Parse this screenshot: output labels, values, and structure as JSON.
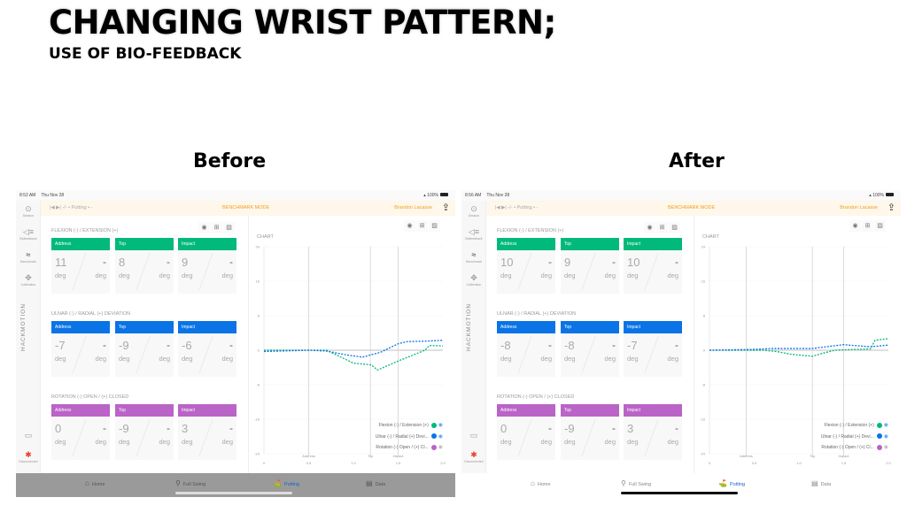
{
  "slide": {
    "title": "CHANGING WRIST PATTERN;",
    "subtitle": "USE OF BIO-FEEDBACK"
  },
  "colors": {
    "flexion": "#00b97a",
    "ulnar": "#0a74e6",
    "rotation": "#b964c6",
    "accent": "#f0a020"
  },
  "panels": [
    {
      "caption": "Before",
      "status": {
        "time": "8:52 AM",
        "date": "Thu Nov 28",
        "battery": "100%"
      },
      "toolbar": {
        "nav": "|◀  ▶|  -/-  •  Putting  •  -",
        "mode": "BENCHMARK MODE",
        "user": "Brandon Lacasse"
      },
      "sidebar": {
        "items": [
          "Session",
          "Biofeedback",
          "Benchmark",
          "Calibration"
        ],
        "brand": "HACKMOTION",
        "status": "Disconnected"
      },
      "sections": [
        {
          "title": "FLEXION (-) / EXTENSION (+)",
          "color": "#00b97a",
          "cards": [
            {
              "label": "Address",
              "value": "11",
              "target": "-",
              "unit": "deg"
            },
            {
              "label": "Top",
              "value": "8",
              "target": "-",
              "unit": "deg"
            },
            {
              "label": "Impact",
              "value": "9",
              "target": "-",
              "unit": "deg"
            }
          ]
        },
        {
          "title": "ULNAR (-) / RADIAL (+) DEVIATION",
          "color": "#0a74e6",
          "cards": [
            {
              "label": "Address",
              "value": "-7",
              "target": "-",
              "unit": "deg"
            },
            {
              "label": "Top",
              "value": "-9",
              "target": "-",
              "unit": "deg"
            },
            {
              "label": "Impact",
              "value": "-6",
              "target": "-",
              "unit": "deg"
            }
          ]
        },
        {
          "title": "ROTATION (-) OPEN / (+) CLOSED",
          "color": "#b964c6",
          "cards": [
            {
              "label": "Address",
              "value": "0",
              "target": "-",
              "unit": "deg"
            },
            {
              "label": "Top",
              "value": "-9",
              "target": "-",
              "unit": "deg"
            },
            {
              "label": "Impact",
              "value": "3",
              "target": "-",
              "unit": "deg"
            }
          ]
        }
      ],
      "chart_title": "CHART",
      "tabs": [
        {
          "label": "Home",
          "icon": "home-icon"
        },
        {
          "label": "Full Swing",
          "icon": "full-swing-icon"
        },
        {
          "label": "Putting",
          "icon": "putting-icon",
          "active": true
        },
        {
          "label": "Data",
          "icon": "data-icon"
        }
      ],
      "dimmed": true
    },
    {
      "caption": "After",
      "status": {
        "time": "8:56 AM",
        "date": "Thu Nov 28",
        "battery": "100%"
      },
      "toolbar": {
        "nav": "|◀  ▶|  -/-  •  Putting  •  -",
        "mode": "BENCHMARK MODE",
        "user": "Brandon Lacasse"
      },
      "sidebar": {
        "items": [
          "Session",
          "Biofeedback",
          "Benchmark",
          "Calibration"
        ],
        "brand": "HACKMOTION",
        "status": "Disconnected"
      },
      "sections": [
        {
          "title": "FLEXION (-) / EXTENSION (+)",
          "color": "#00b97a",
          "cards": [
            {
              "label": "Address",
              "value": "10",
              "target": "-",
              "unit": "deg"
            },
            {
              "label": "Top",
              "value": "9",
              "target": "-",
              "unit": "deg"
            },
            {
              "label": "Impact",
              "value": "10",
              "target": "-",
              "unit": "deg"
            }
          ]
        },
        {
          "title": "ULNAR (-) / RADIAL (+) DEVIATION",
          "color": "#0a74e6",
          "cards": [
            {
              "label": "Address",
              "value": "-8",
              "target": "-",
              "unit": "deg"
            },
            {
              "label": "Top",
              "value": "-8",
              "target": "-",
              "unit": "deg"
            },
            {
              "label": "Impact",
              "value": "-7",
              "target": "-",
              "unit": "deg"
            }
          ]
        },
        {
          "title": "ROTATION (-) OPEN / (+) CLOSED",
          "color": "#b964c6",
          "cards": [
            {
              "label": "Address",
              "value": "0",
              "target": "-",
              "unit": "deg"
            },
            {
              "label": "Top",
              "value": "-9",
              "target": "-",
              "unit": "deg"
            },
            {
              "label": "Impact",
              "value": "3",
              "target": "-",
              "unit": "deg"
            }
          ]
        }
      ],
      "chart_title": "CHART",
      "tabs": [
        {
          "label": "Home",
          "icon": "home-icon"
        },
        {
          "label": "Full Swing",
          "icon": "full-swing-icon"
        },
        {
          "label": "Putting",
          "icon": "putting-icon",
          "active": true
        },
        {
          "label": "Data",
          "icon": "data-icon"
        }
      ],
      "dimmed": false
    }
  ],
  "chart_data": [
    {
      "type": "line",
      "xlim": [
        0,
        2.0
      ],
      "ylim": [
        -24,
        24
      ],
      "xticks": [
        "0",
        "0.5",
        "1.0",
        "1.5",
        "2.0"
      ],
      "yticks": [
        "24",
        "16",
        "8",
        "0",
        "-8",
        "-16",
        "-24"
      ],
      "markers": [
        {
          "label": "Address",
          "x": 0.5
        },
        {
          "label": "Top",
          "x": 1.19
        },
        {
          "label": "Impact",
          "x": 1.5
        }
      ],
      "legend": [
        "Flexion (-) / Extension (+)",
        "Ulnar (-) / Radial (+) Devi...",
        "Rotation (-) Open / (+) Cl..."
      ],
      "series": [
        {
          "name": "Flexion (-) / Extension (+)",
          "color": "#00b97a",
          "visible": true,
          "x": [
            0,
            0.5,
            0.7,
            0.8,
            1.0,
            1.2,
            1.27,
            1.5,
            1.8,
            1.85,
            2.0
          ],
          "y": [
            0,
            0,
            0,
            -1,
            -3,
            -3.4,
            -4.6,
            -2.5,
            0,
            1.1,
            1.0
          ]
        },
        {
          "name": "Ulnar (-) / Radial (+) Devi...",
          "color": "#0a74e6",
          "visible": true,
          "x": [
            0,
            0.5,
            0.7,
            0.9,
            1.1,
            1.3,
            1.5,
            1.6,
            1.8,
            2.0
          ],
          "y": [
            -0.3,
            0,
            -0.2,
            -1,
            -1.6,
            -0.5,
            1.5,
            2.0,
            2.1,
            2.3
          ]
        },
        {
          "name": "Rotation (-) Open / (+) Cl...",
          "color": "#b964c6",
          "visible": false,
          "x": [],
          "y": []
        }
      ]
    },
    {
      "type": "line",
      "xlim": [
        0,
        2.0
      ],
      "ylim": [
        -24,
        24
      ],
      "xticks": [
        "0",
        "0.5",
        "1.0",
        "1.5",
        "2.0"
      ],
      "yticks": [
        "24",
        "16",
        "8",
        "0",
        "-8",
        "-16",
        "-24"
      ],
      "markers": [
        {
          "label": "Address",
          "x": 0.41
        },
        {
          "label": "Top",
          "x": 1.15
        },
        {
          "label": "Impact",
          "x": 1.5
        }
      ],
      "legend": [
        "Flexion (-) / Extension (+)",
        "Ulnar (-) / Radial (+) Devi...",
        "Rotation (-) Open / (+) Cl..."
      ],
      "series": [
        {
          "name": "Flexion (-) / Extension (+)",
          "color": "#00b97a",
          "visible": true,
          "x": [
            0,
            0.6,
            0.75,
            0.9,
            1.15,
            1.25,
            1.4,
            1.5,
            1.8,
            1.85,
            2.0
          ],
          "y": [
            0,
            0,
            -0.3,
            -0.9,
            -1.4,
            -0.8,
            0,
            0.1,
            0.3,
            2.3,
            2.7
          ]
        },
        {
          "name": "Ulnar (-) / Radial (+) Devi...",
          "color": "#0a74e6",
          "visible": true,
          "x": [
            0,
            0.5,
            0.7,
            1.15,
            1.5,
            1.55,
            1.8,
            2.0
          ],
          "y": [
            0,
            0.2,
            0.4,
            0.4,
            1.3,
            1.2,
            0.8,
            1.2
          ]
        },
        {
          "name": "Rotation (-) Open / (+) Cl...",
          "color": "#b964c6",
          "visible": false,
          "x": [],
          "y": []
        }
      ]
    }
  ]
}
